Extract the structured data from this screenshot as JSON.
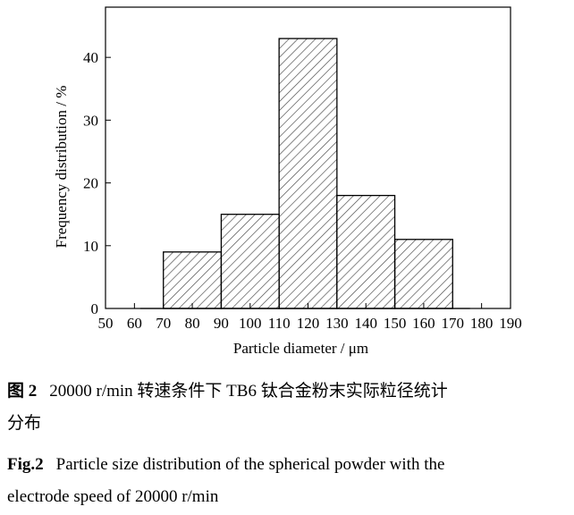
{
  "chart_data": {
    "type": "bar",
    "title": "",
    "xlabel": "Particle diameter / μm",
    "ylabel": "Frequency distribution / %",
    "xlim": [
      50,
      190
    ],
    "ylim": [
      0,
      48
    ],
    "x_ticks": [
      50,
      60,
      70,
      80,
      90,
      100,
      110,
      120,
      130,
      140,
      150,
      160,
      170,
      180,
      190
    ],
    "y_ticks": [
      0,
      10,
      20,
      30,
      40
    ],
    "grid": false,
    "hatch": "diagonal",
    "bins": [
      {
        "from": 70,
        "to": 90,
        "value": 9
      },
      {
        "from": 90,
        "to": 110,
        "value": 15
      },
      {
        "from": 110,
        "to": 130,
        "value": 43
      },
      {
        "from": 130,
        "to": 150,
        "value": 18
      },
      {
        "from": 150,
        "to": 170,
        "value": 11
      }
    ],
    "baseline": [
      62,
      176
    ]
  },
  "caption_zh": {
    "label": "图 2",
    "text_line1": "20000 r/min 转速条件下 TB6 钛合金粉末实际粒径统计",
    "text_line2": "分布"
  },
  "caption_en": {
    "label": "Fig.2",
    "text_line1": "Particle size distribution of the spherical powder with the",
    "text_line2": "electrode speed of 20000 r/min"
  }
}
